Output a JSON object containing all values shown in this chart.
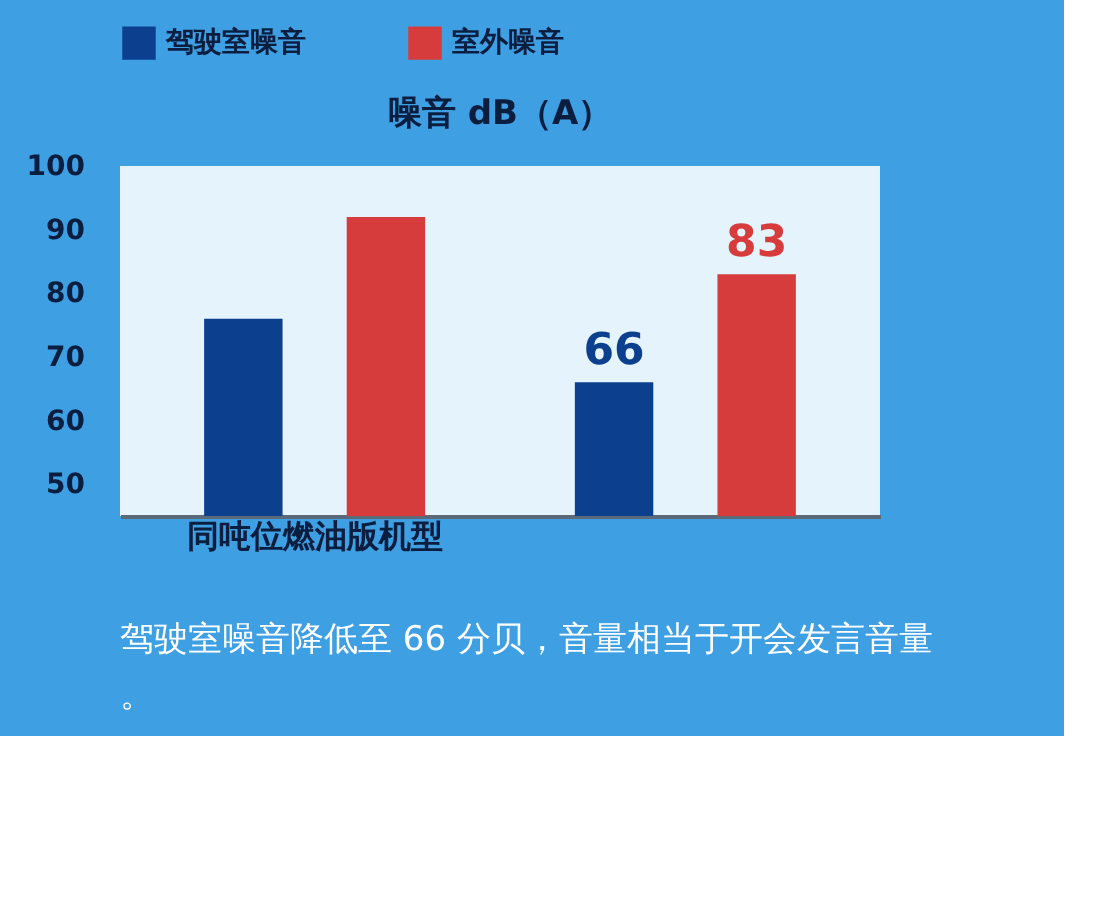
{
  "chart_data": {
    "type": "bar",
    "title": "噪音 dB（A）",
    "categories": [
      "同吨位燃油版机型",
      null
    ],
    "series": [
      {
        "name": "驾驶室噪音",
        "color": "#0d3f8f",
        "values": [
          76,
          66
        ],
        "value_labels": [
          null,
          "66"
        ]
      },
      {
        "name": "室外噪音",
        "color": "#d63c3c",
        "values": [
          92,
          83
        ],
        "value_labels": [
          null,
          "83"
        ]
      }
    ],
    "ylim": [
      45,
      100
    ],
    "yticks": [
      50,
      60,
      70,
      80,
      90,
      100
    ],
    "grid": false,
    "legend": "top",
    "annotations": [
      "驾驶室噪音降低至 66 分贝，音量相当于开会发言音量。"
    ]
  }
}
